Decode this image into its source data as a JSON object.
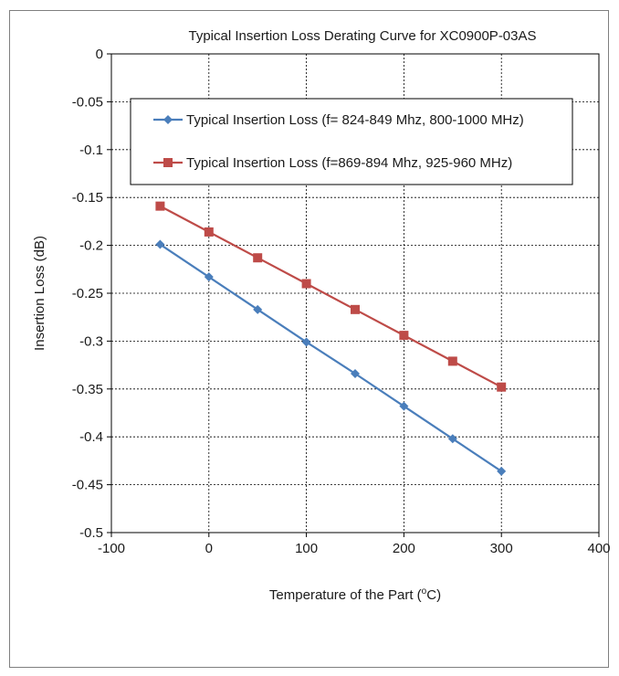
{
  "chart_data": {
    "type": "line",
    "title": "Typical Insertion Loss Derating Curve for XC0900P-03AS",
    "xlabel_main": "Temperature of the Part (",
    "xlabel_sup": "o",
    "xlabel_tail": "C)",
    "ylabel": "Insertion Loss (dB)",
    "xlim": [
      -100,
      400
    ],
    "ylim": [
      -0.5,
      0
    ],
    "xticks": [
      "-100",
      "0",
      "100",
      "200",
      "300",
      "400"
    ],
    "yticks": [
      "0",
      "-0.05",
      "-0.1",
      "-0.15",
      "-0.2",
      "-0.25",
      "-0.3",
      "-0.35",
      "-0.4",
      "-0.45",
      "-0.5"
    ],
    "grid": true,
    "legend_position": "top",
    "series": [
      {
        "name": "Typical Insertion Loss (f= 824-849 Mhz, 800-1000 MHz)",
        "color": "#4a7ebb",
        "marker": "diamond",
        "x": [
          -50,
          0,
          50,
          100,
          150,
          200,
          250,
          300
        ],
        "y": [
          -0.199,
          -0.233,
          -0.267,
          -0.301,
          -0.334,
          -0.368,
          -0.402,
          -0.436
        ]
      },
      {
        "name": "Typical Insertion Loss (f=869-894 Mhz, 925-960 MHz)",
        "color": "#be4b48",
        "marker": "square",
        "x": [
          -50,
          0,
          50,
          100,
          150,
          200,
          250,
          300
        ],
        "y": [
          -0.159,
          -0.186,
          -0.213,
          -0.24,
          -0.267,
          -0.294,
          -0.321,
          -0.348
        ]
      }
    ]
  }
}
